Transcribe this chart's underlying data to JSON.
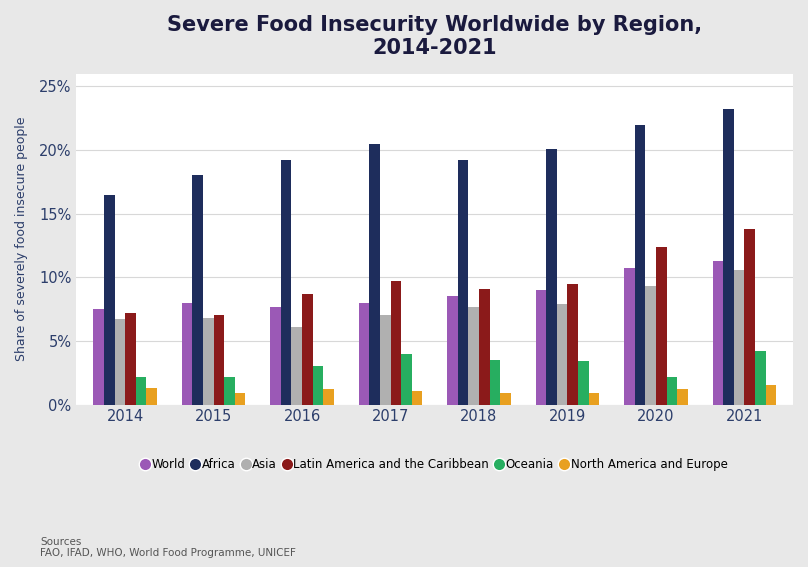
{
  "title": "Severe Food Insecurity Worldwide by Region,\n2014-2021",
  "ylabel": "Share of severely food insecure people",
  "years": [
    2014,
    2015,
    2016,
    2017,
    2018,
    2019,
    2020,
    2021
  ],
  "series": {
    "World": [
      7.5,
      8.0,
      7.7,
      8.0,
      8.5,
      9.0,
      10.7,
      11.3
    ],
    "Africa": [
      16.5,
      18.0,
      19.2,
      20.5,
      19.2,
      20.1,
      22.0,
      23.2
    ],
    "Asia": [
      6.7,
      6.8,
      6.1,
      7.0,
      7.7,
      7.9,
      9.3,
      10.6
    ],
    "Latin America and the Caribbean": [
      7.2,
      7.0,
      8.7,
      9.7,
      9.1,
      9.5,
      12.4,
      13.8
    ],
    "Oceania": [
      2.2,
      2.2,
      3.0,
      4.0,
      3.5,
      3.4,
      2.2,
      4.2
    ],
    "North America and Europe": [
      1.3,
      0.9,
      1.2,
      1.1,
      0.9,
      0.9,
      1.2,
      1.5
    ]
  },
  "colors": {
    "World": "#9b59b6",
    "Africa": "#1e2d5c",
    "Asia": "#b0b0b0",
    "Latin America and the Caribbean": "#8b1a1a",
    "Oceania": "#27ae60",
    "North America and Europe": "#e8a020"
  },
  "fig_background": "#e8e8e8",
  "plot_background": "#ffffff",
  "ylim_max": 26,
  "yticks": [
    0,
    5,
    10,
    15,
    20,
    25
  ],
  "ytick_labels": [
    "0%",
    "5%",
    "10%",
    "15%",
    "20%",
    "25%"
  ],
  "sources_text": "Sources\nFAO, IFAD, WHO, World Food Programme, UNICEF",
  "title_fontsize": 15,
  "bar_width": 0.12,
  "title_color": "#1a1a3e",
  "axis_color": "#2c3e6b",
  "grid_color": "#d8d8d8"
}
